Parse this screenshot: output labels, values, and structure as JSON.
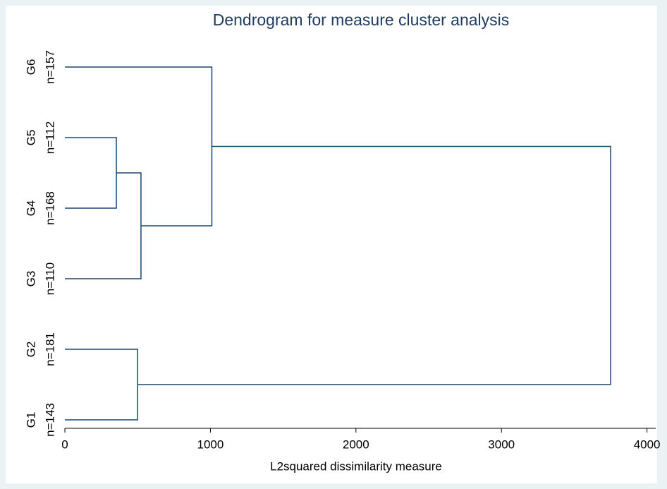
{
  "chart_data": {
    "type": "dendrogram",
    "title": "Dendrogram for measure cluster analysis",
    "x_label": "L2squared dissimilarity measure",
    "leaves": [
      {
        "name": "G1",
        "label": "n=143"
      },
      {
        "name": "G2",
        "label": "n=181"
      },
      {
        "name": "G3",
        "label": "n=110"
      },
      {
        "name": "G4",
        "label": "n=168"
      },
      {
        "name": "G5",
        "label": "n=112"
      },
      {
        "name": "G6",
        "label": "n=157"
      }
    ],
    "merges": [
      {
        "join": [
          4,
          3
        ],
        "height": 354
      },
      {
        "join": [
          6,
          2
        ],
        "height": 523
      },
      {
        "join": [
          5,
          7
        ],
        "height": 1010
      },
      {
        "join": [
          1,
          0
        ],
        "height": 500
      },
      {
        "join": [
          8,
          9
        ],
        "height": 3750
      }
    ],
    "color": "#1a476f",
    "xlim": [
      0,
      4060
    ],
    "xticks": [
      0,
      1000,
      2000,
      3000,
      4000
    ]
  }
}
